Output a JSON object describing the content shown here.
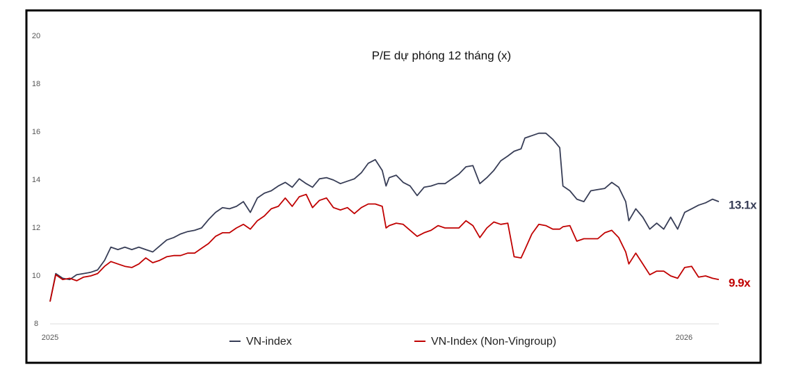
{
  "chart_data": {
    "type": "line",
    "title": "P/E dự phóng 12 tháng (x)",
    "x": [
      2025.0,
      2025.009,
      2025.02,
      2025.031,
      2025.042,
      2025.053,
      2025.064,
      2025.075,
      2025.086,
      2025.096,
      2025.107,
      2025.118,
      2025.129,
      2025.14,
      2025.151,
      2025.162,
      2025.173,
      2025.184,
      2025.195,
      2025.206,
      2025.217,
      2025.228,
      2025.239,
      2025.25,
      2025.261,
      2025.272,
      2025.283,
      2025.294,
      2025.305,
      2025.316,
      2025.327,
      2025.338,
      2025.349,
      2025.36,
      2025.371,
      2025.382,
      2025.393,
      2025.404,
      2025.414,
      2025.425,
      2025.436,
      2025.447,
      2025.458,
      2025.469,
      2025.48,
      2025.491,
      2025.502,
      2025.513,
      2025.524,
      2025.53,
      2025.535,
      2025.546,
      2025.557,
      2025.568,
      2025.579,
      2025.59,
      2025.601,
      2025.612,
      2025.623,
      2025.634,
      2025.645,
      2025.656,
      2025.667,
      2025.678,
      2025.689,
      2025.7,
      2025.711,
      2025.722,
      2025.732,
      2025.743,
      2025.749,
      2025.76,
      2025.771,
      2025.782,
      2025.793,
      2025.804,
      2025.809,
      2025.82,
      2025.831,
      2025.842,
      2025.853,
      2025.864,
      2025.875,
      2025.886,
      2025.897,
      2025.908,
      2025.913,
      2025.924,
      2025.935,
      2025.946,
      2025.957,
      2025.968,
      2025.979,
      2025.99,
      2026.001,
      2026.012,
      2026.023,
      2026.034,
      2026.045,
      2026.055
    ],
    "series": [
      {
        "name": "VN-index",
        "color": "#373d56",
        "values": [
          8.93,
          10.1,
          9.9,
          9.85,
          10.05,
          10.1,
          10.15,
          10.25,
          10.65,
          11.2,
          11.1,
          11.2,
          11.1,
          11.2,
          11.1,
          11.0,
          11.25,
          11.5,
          11.6,
          11.75,
          11.85,
          11.9,
          12.0,
          12.35,
          12.65,
          12.85,
          12.8,
          12.9,
          13.1,
          12.65,
          13.25,
          13.45,
          13.55,
          13.75,
          13.9,
          13.7,
          14.05,
          13.85,
          13.7,
          14.05,
          14.1,
          14.0,
          13.85,
          13.95,
          14.05,
          14.3,
          14.7,
          14.85,
          14.4,
          13.75,
          14.1,
          14.2,
          13.9,
          13.75,
          13.35,
          13.7,
          13.75,
          13.85,
          13.85,
          14.05,
          14.25,
          14.55,
          14.6,
          13.85,
          14.1,
          14.4,
          14.8,
          15.0,
          15.2,
          15.3,
          15.75,
          15.85,
          15.95,
          15.95,
          15.7,
          15.35,
          13.75,
          13.55,
          13.2,
          13.1,
          13.55,
          13.6,
          13.65,
          13.9,
          13.7,
          13.1,
          12.3,
          12.8,
          12.45,
          11.95,
          12.2,
          11.95,
          12.45,
          11.95,
          12.65,
          12.8,
          12.95,
          13.05,
          13.2,
          13.1
        ]
      },
      {
        "name": "VN-Index (Non-Vingroup)",
        "color": "#c00000",
        "values": [
          8.93,
          10.05,
          9.85,
          9.9,
          9.8,
          9.95,
          10.0,
          10.1,
          10.4,
          10.6,
          10.5,
          10.4,
          10.35,
          10.5,
          10.75,
          10.55,
          10.65,
          10.8,
          10.85,
          10.85,
          10.95,
          10.95,
          11.15,
          11.35,
          11.65,
          11.8,
          11.8,
          12.0,
          12.15,
          11.95,
          12.3,
          12.5,
          12.8,
          12.9,
          13.25,
          12.9,
          13.3,
          13.4,
          12.85,
          13.15,
          13.25,
          12.85,
          12.75,
          12.85,
          12.6,
          12.85,
          13.0,
          13.0,
          12.9,
          12.0,
          12.1,
          12.2,
          12.15,
          11.9,
          11.65,
          11.8,
          11.9,
          12.1,
          12.0,
          12.0,
          12.0,
          12.3,
          12.1,
          11.6,
          12.0,
          12.25,
          12.15,
          12.2,
          10.8,
          10.75,
          11.1,
          11.75,
          12.15,
          12.1,
          11.95,
          11.95,
          12.05,
          12.1,
          11.45,
          11.55,
          11.55,
          11.55,
          11.8,
          11.9,
          11.6,
          11.0,
          10.5,
          10.95,
          10.5,
          10.05,
          10.2,
          10.2,
          10.0,
          9.9,
          10.35,
          10.4,
          9.95,
          10.0,
          9.9,
          9.85
        ]
      }
    ],
    "annotations": [
      {
        "text": "13.1x",
        "color": "#373d56"
      },
      {
        "text": "9.9x",
        "color": "#c00000"
      }
    ],
    "xlim": [
      2025,
      2026.055
    ],
    "xticks": [
      2025,
      2026
    ],
    "ylim": [
      8,
      20
    ],
    "yticks": [
      8,
      10,
      12,
      14,
      16,
      18,
      20
    ],
    "grid": false,
    "legend": "bottom"
  }
}
